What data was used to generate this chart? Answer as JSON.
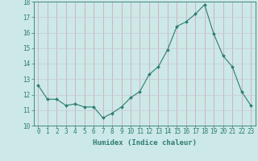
{
  "x": [
    0,
    1,
    2,
    3,
    4,
    5,
    6,
    7,
    8,
    9,
    10,
    11,
    12,
    13,
    14,
    15,
    16,
    17,
    18,
    19,
    20,
    21,
    22,
    23
  ],
  "y": [
    12.6,
    11.7,
    11.7,
    11.3,
    11.4,
    11.2,
    11.2,
    10.5,
    10.8,
    11.2,
    11.8,
    12.2,
    13.3,
    13.8,
    14.9,
    16.4,
    16.7,
    17.2,
    17.8,
    15.9,
    14.5,
    13.8,
    12.2,
    11.3
  ],
  "line_color": "#2e7d6e",
  "marker": "D",
  "marker_size": 2.0,
  "bg_color": "#cce8e8",
  "grid_color_v": "#d4a0a0",
  "grid_color_h": "#c8c8d8",
  "xlabel": "Humidex (Indice chaleur)",
  "ylim": [
    10,
    18
  ],
  "xlim": [
    -0.5,
    23.5
  ],
  "yticks": [
    10,
    11,
    12,
    13,
    14,
    15,
    16,
    17,
    18
  ],
  "xticks": [
    0,
    1,
    2,
    3,
    4,
    5,
    6,
    7,
    8,
    9,
    10,
    11,
    12,
    13,
    14,
    15,
    16,
    17,
    18,
    19,
    20,
    21,
    22,
    23
  ],
  "xtick_labels": [
    "0",
    "1",
    "2",
    "3",
    "4",
    "5",
    "6",
    "7",
    "8",
    "9",
    "10",
    "11",
    "12",
    "13",
    "14",
    "15",
    "16",
    "17",
    "18",
    "19",
    "20",
    "21",
    "22",
    "23"
  ],
  "label_fontsize": 6.5,
  "tick_fontsize": 5.5
}
